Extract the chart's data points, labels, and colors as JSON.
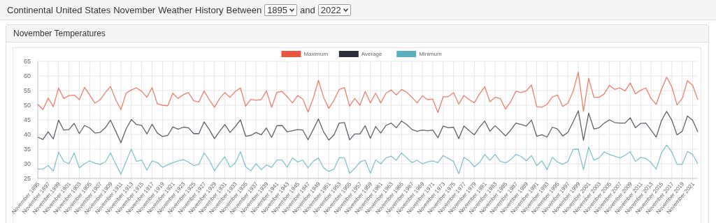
{
  "chart_data": {
    "type": "line",
    "title": "Continental United States November Weather History Between 1895 and 2022",
    "subtitle": "November Temperatures",
    "categories": [
      "November 1895",
      null,
      "November 1897",
      null,
      "November 1899",
      null,
      "November 1901",
      null,
      "November 1903",
      null,
      "November 1905",
      null,
      "November 1907",
      null,
      "November 1909",
      null,
      "November 1911",
      null,
      "November 1913",
      null,
      "November 1915",
      null,
      "November 1917",
      null,
      "November 1919",
      null,
      "November 1921",
      null,
      "November 1923",
      null,
      "November 1925",
      null,
      "November 1927",
      null,
      "November 1929",
      null,
      "November 1931",
      null,
      "November 1933",
      null,
      "November 1935",
      null,
      "November 1937",
      null,
      "November 1939",
      null,
      "November 1941",
      null,
      "November 1943",
      null,
      "November 1945",
      null,
      "November 1947",
      null,
      "November 1949",
      null,
      "November 1951",
      null,
      "November 1953",
      null,
      "November 1955",
      null,
      "November 1957",
      null,
      "November 1959",
      null,
      "November 1961",
      null,
      "November 1963",
      null,
      "November 1965",
      null,
      "November 1967",
      null,
      "November 1969",
      null,
      "November 1971",
      null,
      "November 1973",
      null,
      "November 1975",
      null,
      "November 1977",
      null,
      "November 1979",
      null,
      "November 1981",
      null,
      "November 1983",
      null,
      "November 1985",
      null,
      "November 1987",
      null,
      "November 1989",
      null,
      "November 1991",
      null,
      "November 1993",
      null,
      "November 1995",
      null,
      "November 1997",
      null,
      "November 1999",
      null,
      "November 2001",
      null,
      "November 2003",
      null,
      "November 2005",
      null,
      "November 2007",
      null,
      "November 2009",
      null,
      "November 2011",
      null,
      "November 2013",
      null,
      "November 2015",
      null,
      "November 2017",
      null,
      "November 2019",
      null,
      "November 2021",
      null
    ],
    "series": [
      {
        "name": "Maximum",
        "color": "#e8563f",
        "values": [
          50.3,
          48.5,
          52.4,
          49.5,
          55.9,
          52.3,
          53.3,
          53.5,
          51.9,
          56.1,
          53.5,
          50.7,
          51.9,
          54.3,
          56.4,
          51.9,
          48.5,
          54.1,
          55.2,
          55.9,
          54.8,
          52.7,
          56.0,
          50.5,
          50.0,
          49.8,
          54.1,
          52.3,
          53.6,
          54.3,
          51.5,
          51.1,
          54.9,
          51.9,
          49.3,
          52.3,
          54.3,
          52.7,
          54.7,
          55.9,
          49.7,
          52.0,
          51.7,
          51.9,
          54.9,
          49.3,
          54.4,
          54.7,
          52.9,
          50.8,
          53.3,
          52.1,
          47.7,
          52.3,
          58.5,
          52.7,
          48.9,
          51.7,
          55.4,
          56.0,
          49.7,
          52.3,
          50.0,
          54.7,
          50.8,
          54.1,
          50.8,
          54.1,
          55.2,
          53.5,
          55.4,
          54.4,
          52.7,
          50.8,
          53.2,
          51.9,
          52.1,
          47.5,
          52.9,
          52.9,
          54.3,
          50.4,
          53.3,
          51.9,
          50.8,
          53.9,
          56.3,
          51.2,
          52.7,
          52.3,
          48.7,
          51.2,
          54.8,
          54.3,
          54.9,
          56.9,
          49.5,
          49.3,
          50.3,
          52.8,
          53.5,
          49.6,
          50.7,
          54.7,
          61.3,
          47.9,
          59.2,
          52.7,
          52.7,
          53.9,
          56.8,
          55.4,
          55.9,
          54.9,
          57.6,
          53.9,
          55.1,
          55.9,
          52.3,
          50.3,
          55.4,
          59.6,
          56.3,
          50.1,
          52.3,
          58.4,
          56.8,
          51.9
        ]
      },
      {
        "name": "Average",
        "color": "#2b2d3b",
        "values": [
          39.1,
          38.3,
          40.9,
          38.5,
          44.9,
          41.5,
          41.7,
          43.8,
          40.3,
          43.1,
          42.2,
          40.5,
          40.7,
          42.3,
          44.9,
          41.1,
          37.2,
          41.9,
          45.1,
          43.4,
          43.1,
          40.2,
          43.5,
          40.5,
          39.3,
          39.7,
          42.6,
          41.8,
          42.5,
          42.3,
          40.3,
          40.3,
          44.3,
          41.7,
          38.6,
          41.1,
          43.4,
          40.7,
          42.7,
          45.0,
          39.4,
          39.7,
          40.7,
          39.9,
          42.2,
          39.0,
          43.0,
          43.1,
          40.9,
          41.3,
          41.7,
          41.5,
          38.2,
          41.7,
          45.3,
          40.9,
          38.1,
          39.9,
          43.9,
          44.1,
          38.2,
          40.2,
          40.2,
          43.0,
          38.7,
          42.7,
          40.5,
          43.1,
          43.9,
          42.3,
          44.6,
          43.4,
          41.7,
          41.1,
          41.5,
          41.3,
          41.5,
          38.9,
          42.9,
          42.3,
          42.5,
          38.6,
          42.9,
          41.3,
          39.9,
          42.5,
          44.6,
          41.1,
          43.0,
          41.3,
          39.5,
          41.5,
          43.9,
          43.4,
          42.9,
          44.9,
          39.4,
          39.9,
          39.1,
          42.5,
          41.9,
          39.5,
          40.7,
          44.3,
          48.1,
          38.0,
          47.3,
          41.9,
          42.3,
          43.9,
          45.0,
          44.1,
          43.9,
          43.9,
          45.7,
          42.3,
          43.8,
          43.9,
          41.5,
          39.1,
          44.7,
          47.9,
          44.9,
          39.9,
          41.1,
          46.3,
          44.9,
          40.9
        ]
      },
      {
        "name": "Minimum",
        "color": "#5ab0c0",
        "values": [
          28.2,
          28.2,
          29.4,
          27.5,
          34.0,
          30.8,
          30.0,
          33.7,
          28.6,
          30.0,
          31.0,
          30.2,
          29.8,
          30.6,
          33.7,
          30.0,
          26.4,
          30.8,
          35.0,
          30.8,
          31.3,
          27.8,
          31.0,
          30.4,
          28.8,
          29.6,
          30.4,
          31.0,
          31.4,
          30.6,
          29.4,
          29.8,
          33.7,
          31.2,
          27.6,
          30.2,
          32.4,
          28.8,
          30.3,
          34.1,
          29.0,
          27.6,
          30.0,
          28.0,
          29.6,
          28.8,
          31.3,
          31.3,
          28.8,
          32.0,
          30.6,
          31.2,
          28.6,
          30.8,
          32.0,
          28.6,
          27.4,
          28.2,
          32.1,
          32.0,
          26.8,
          28.4,
          30.6,
          31.2,
          26.8,
          31.3,
          30.0,
          32.0,
          32.6,
          31.2,
          33.7,
          32.0,
          30.4,
          31.2,
          30.0,
          30.6,
          31.0,
          30.4,
          32.8,
          31.8,
          30.8,
          26.6,
          32.2,
          31.0,
          29.0,
          30.4,
          33.2,
          31.2,
          33.2,
          30.8,
          30.3,
          31.4,
          33.2,
          32.5,
          31.0,
          32.8,
          29.4,
          31.0,
          28.0,
          32.2,
          30.6,
          29.8,
          30.8,
          34.9,
          35.0,
          28.0,
          35.7,
          31.2,
          32.0,
          34.1,
          33.2,
          32.6,
          32.0,
          32.9,
          34.1,
          30.8,
          32.2,
          31.8,
          30.4,
          28.2,
          33.7,
          36.4,
          34.0,
          29.8,
          29.8,
          34.2,
          33.2,
          30.0
        ]
      }
    ],
    "ylim": [
      25,
      65
    ],
    "yticks": [
      25,
      30,
      35,
      40,
      45,
      50,
      55,
      60,
      65
    ],
    "grid": true,
    "legend": "top",
    "marker": "none",
    "line_style": "solid"
  }
}
